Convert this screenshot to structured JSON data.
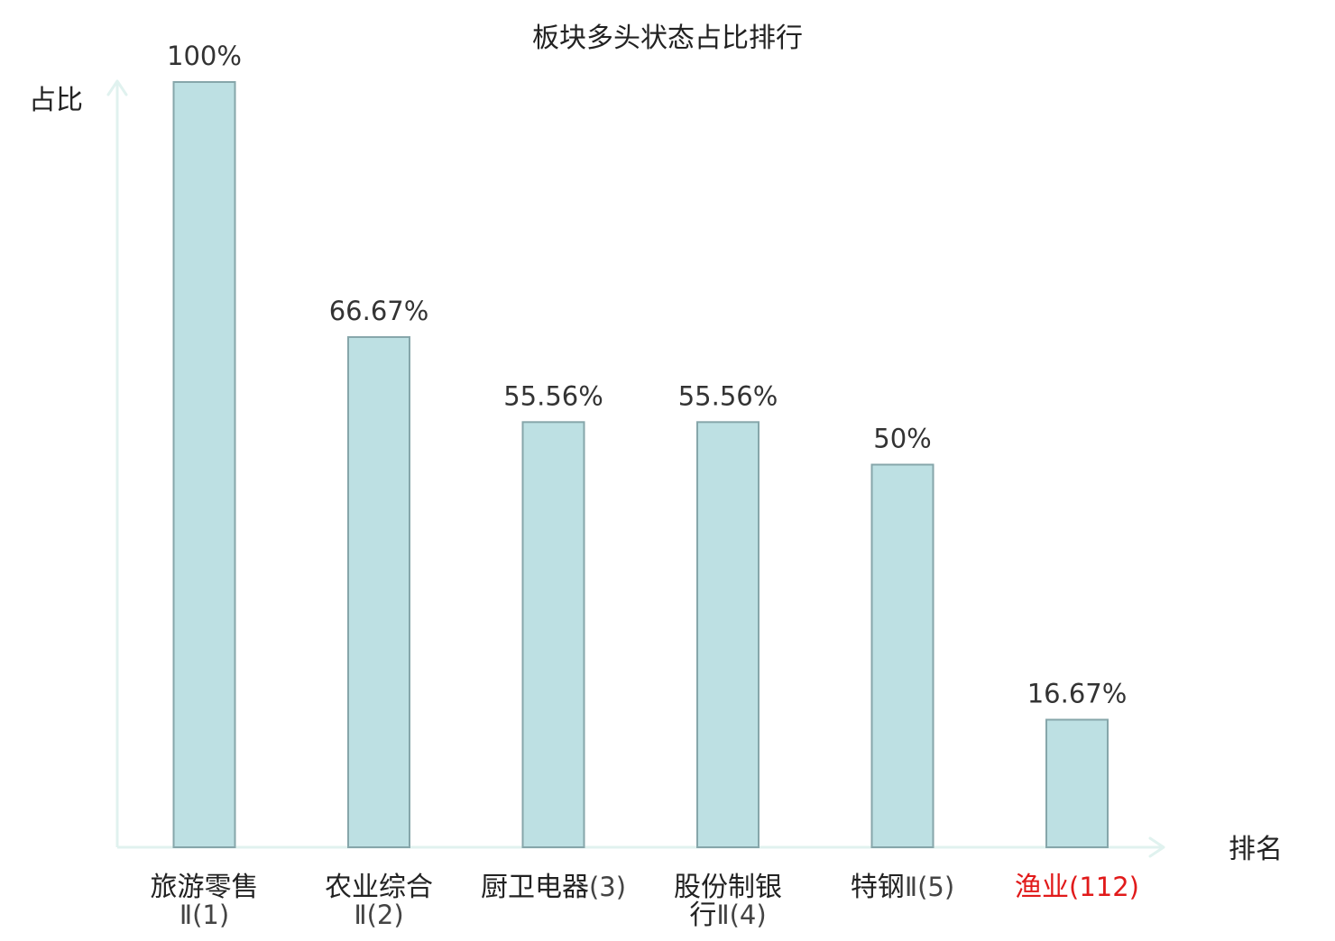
{
  "chart_data": {
    "type": "bar",
    "title": "板块多头状态占比排行",
    "ylabel": "占比",
    "xlabel": "排名",
    "ylim": [
      0,
      100
    ],
    "grid": false,
    "categories": [
      {
        "name": "旅游零售",
        "rank_label": "Ⅱ(1)",
        "line1": "旅游零售",
        "line2": "Ⅱ(1)",
        "highlight": false
      },
      {
        "name": "农业综合",
        "rank_label": "Ⅱ(2)",
        "line1": "农业综合",
        "line2": "Ⅱ(2)",
        "highlight": false
      },
      {
        "name": "厨卫电器",
        "rank_label": "(3)",
        "line1": "厨卫电器",
        "line1_suffix": "(3)",
        "line2": "",
        "highlight": false
      },
      {
        "name": "股份制银行",
        "rank_label": "Ⅱ(4)",
        "line1": "股份制银",
        "line2": "行",
        "line2_suffix": "Ⅱ(4)",
        "highlight": false
      },
      {
        "name": "特钢",
        "rank_label": "Ⅱ(5)",
        "line1": "特钢",
        "line1_suffix": "Ⅱ(5)",
        "line2": "",
        "highlight": false
      },
      {
        "name": "渔业",
        "rank_label": "(112)",
        "line1": "渔业",
        "line1_suffix": "(112)",
        "line2": "",
        "highlight": true
      }
    ],
    "values": [
      100,
      66.67,
      55.56,
      55.56,
      50,
      16.67
    ],
    "value_labels": [
      "100%",
      "66.67%",
      "55.56%",
      "55.56%",
      "50%",
      "16.67%"
    ],
    "colors": {
      "bar_fill": "#bde0e3",
      "bar_stroke": "#86a6aa",
      "axis": "#e0f2ef",
      "text": "#222222",
      "value_text": "#333333",
      "highlight_text": "#e11a1a",
      "muted_text": "#444444"
    }
  }
}
